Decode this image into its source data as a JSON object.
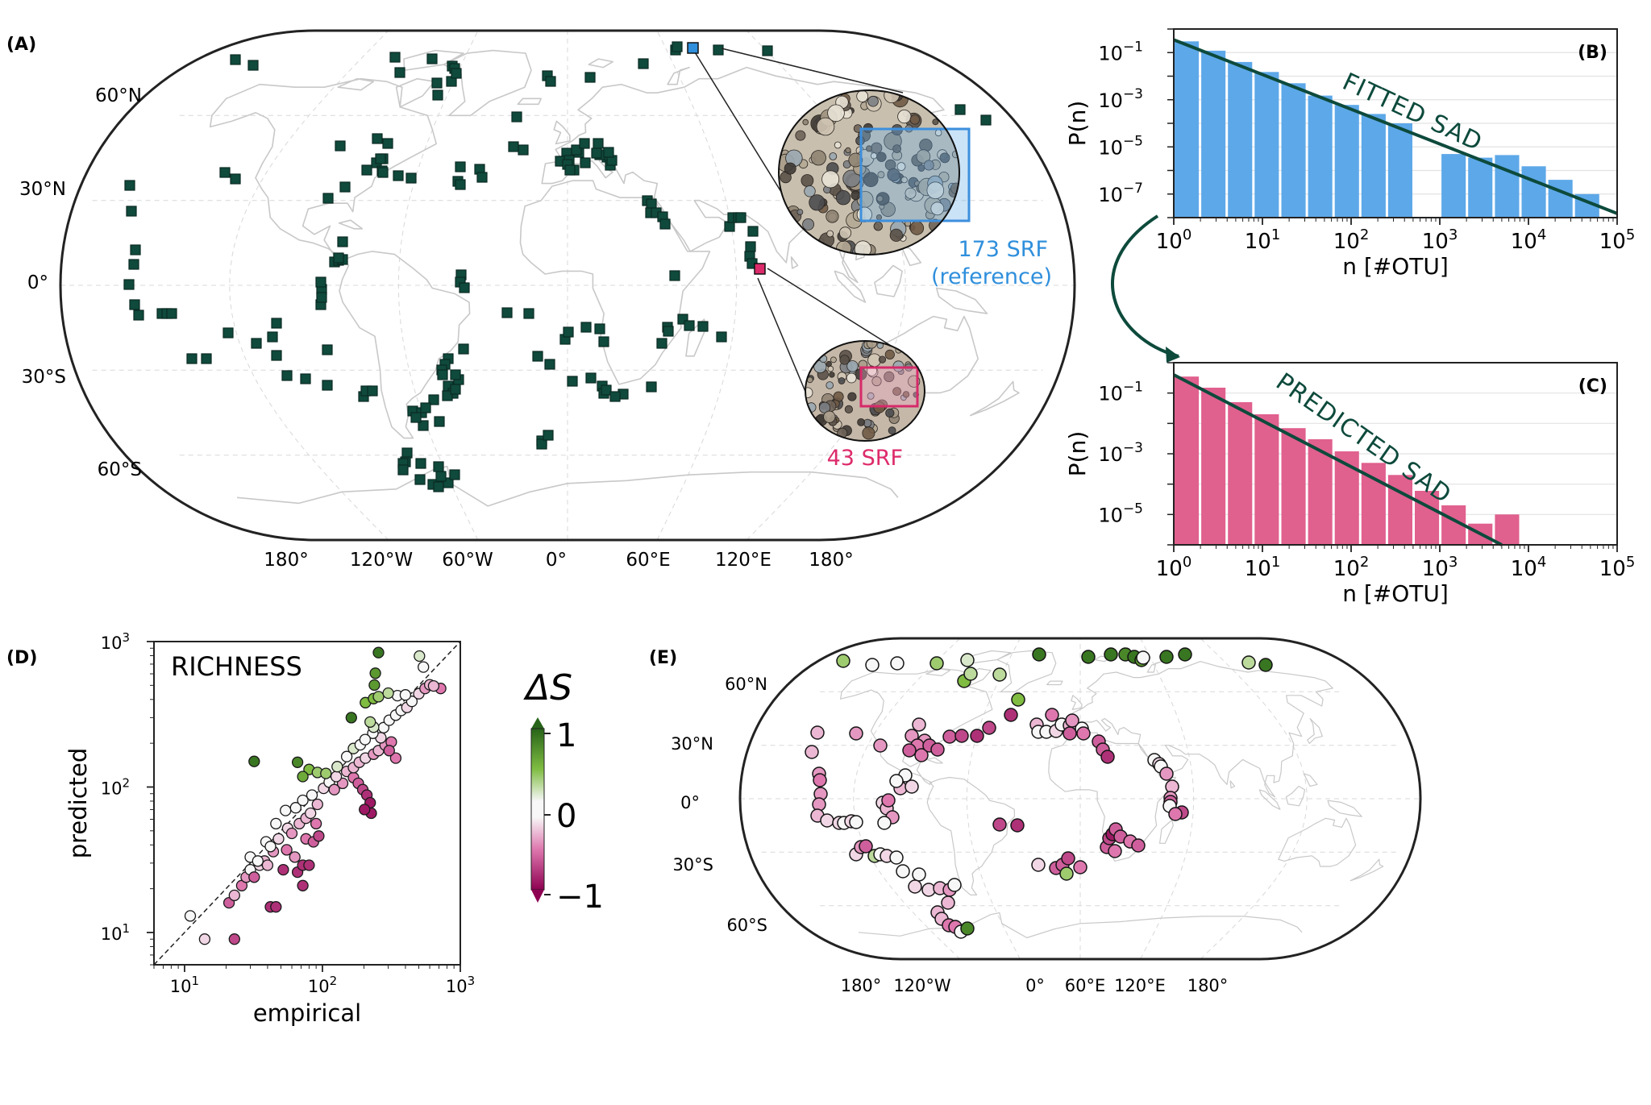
{
  "colors": {
    "marker": "#0f4a3c",
    "blue": "#5da8e8",
    "blue_text": "#2f8fdc",
    "pink": "#e0608e",
    "pink_text": "#dd2a6a",
    "fit_line": "#0d4a3c",
    "land": "#c8c8c8",
    "cb_pos": "#2f7a2a",
    "cb_neg": "#8e0152"
  },
  "panels": {
    "A": {
      "label": "(A)",
      "annotation_ref_1": "173 SRF",
      "annotation_ref_2": "(reference)",
      "annotation_sub": "43 SRF"
    },
    "B": {
      "label": "(B)",
      "fit_label": "FITTED SAD"
    },
    "C": {
      "label": "(C)",
      "fit_label": "PREDICTED SAD"
    },
    "D": {
      "label": "(D)",
      "title": "RICHNESS"
    },
    "E": {
      "label": "(E)"
    }
  },
  "map_labels": {
    "A_lat": [
      "60°N",
      "30°N",
      "0°",
      "30°S",
      "60°S"
    ],
    "A_lon": [
      "180°",
      "120°W",
      "60°W",
      "0°",
      "60°E",
      "120°E",
      "180°"
    ],
    "E_lat": [
      "60°N",
      "30°N",
      "0°",
      "30°S",
      "60°S"
    ],
    "E_lon": [
      "180°",
      "120°W",
      "0°",
      "60°E",
      "120°E",
      "180°"
    ]
  },
  "colorbar": {
    "title": "ΔS",
    "ticks": [
      "1",
      "0",
      "−1"
    ],
    "range": [
      -1,
      1
    ]
  },
  "chart_data": [
    {
      "type": "bar",
      "panel": "B",
      "xlabel": "n [#OTU]",
      "ylabel": "P(n)",
      "xscale": "log",
      "yscale": "log",
      "xlim": [
        1,
        100000
      ],
      "ylim": [
        1e-08,
        1
      ],
      "xtick_labels": [
        "10^0",
        "10^1",
        "10^2",
        "10^3",
        "10^4",
        "10^5"
      ],
      "ytick_labels": [
        "10^-1",
        "10^-3",
        "10^-5",
        "10^-7"
      ],
      "bin_edges": [
        1,
        2,
        4,
        8,
        16,
        32,
        64,
        128,
        256,
        512,
        1024,
        2048,
        4096,
        8192,
        16384,
        32768,
        65536
      ],
      "values": [
        0.3,
        0.12,
        0.04,
        0.015,
        0.005,
        0.0015,
        0.0006,
        0.00025,
        0.0001,
        null,
        5e-06,
        3.5e-06,
        4.5e-06,
        1.5e-06,
        4e-07,
        1e-07
      ],
      "fit_line": {
        "x": [
          1,
          100000
        ],
        "y": [
          0.35,
          1.5e-08
        ]
      }
    },
    {
      "type": "bar",
      "panel": "C",
      "xlabel": "n [#OTU]",
      "ylabel": "P(n)",
      "xscale": "log",
      "yscale": "log",
      "xlim": [
        1,
        100000
      ],
      "ylim": [
        1e-06,
        1
      ],
      "xtick_labels": [
        "10^0",
        "10^1",
        "10^2",
        "10^3",
        "10^4",
        "10^5"
      ],
      "ytick_labels": [
        "10^-1",
        "10^-3",
        "10^-5"
      ],
      "bin_edges": [
        1,
        2,
        4,
        8,
        16,
        32,
        64,
        128,
        256,
        512,
        1024,
        2048,
        4096,
        8192
      ],
      "values": [
        0.35,
        0.15,
        0.05,
        0.02,
        0.007,
        0.003,
        0.0012,
        0.0005,
        0.0002,
        6e-05,
        2e-05,
        5e-06,
        1e-05
      ],
      "fit_line": {
        "x": [
          1,
          5000
        ],
        "y": [
          0.4,
          1e-06
        ]
      }
    },
    {
      "type": "scatter",
      "panel": "D",
      "xlabel": "empirical",
      "ylabel": "predicted",
      "xscale": "log",
      "yscale": "log",
      "xlim": [
        6,
        1000
      ],
      "ylim": [
        6,
        1000
      ],
      "xtick_labels": [
        "10^1",
        "10^2",
        "10^3"
      ],
      "ytick_labels": [
        "10^1",
        "10^2",
        "10^3"
      ],
      "identity_line": true,
      "points": [
        [
          11,
          13,
          0
        ],
        [
          14,
          9,
          -0.2
        ],
        [
          23,
          9,
          -0.7
        ],
        [
          21,
          16,
          -0.6
        ],
        [
          23,
          18,
          -0.3
        ],
        [
          26,
          21,
          -0.5
        ],
        [
          28,
          24,
          -0.4
        ],
        [
          30,
          27,
          -0.1
        ],
        [
          32,
          24,
          -0.6
        ],
        [
          35,
          29,
          -0.2
        ],
        [
          38,
          31,
          -0.3
        ],
        [
          42,
          15,
          -0.8
        ],
        [
          46,
          15,
          -0.8
        ],
        [
          30,
          33,
          0
        ],
        [
          34,
          31,
          0
        ],
        [
          40,
          29,
          -0.3
        ],
        [
          44,
          36,
          -0.4
        ],
        [
          52,
          27,
          -0.8
        ],
        [
          55,
          37,
          -0.5
        ],
        [
          63,
          33,
          -0.4
        ],
        [
          66,
          26,
          -0.8
        ],
        [
          72,
          29,
          -0.8
        ],
        [
          80,
          29,
          -0.8
        ],
        [
          72,
          21,
          -0.8
        ],
        [
          39,
          42,
          0
        ],
        [
          42,
          39,
          -0.1
        ],
        [
          48,
          44,
          -0.2
        ],
        [
          56,
          52,
          -0.2
        ],
        [
          60,
          48,
          -0.4
        ],
        [
          68,
          56,
          -0.3
        ],
        [
          76,
          44,
          -0.5
        ],
        [
          86,
          42,
          -0.6
        ],
        [
          94,
          46,
          -0.7
        ],
        [
          90,
          56,
          -0.5
        ],
        [
          76,
          61,
          -0.3
        ],
        [
          82,
          66,
          -0.2
        ],
        [
          46,
          56,
          0
        ],
        [
          54,
          69,
          0.1
        ],
        [
          64,
          72,
          0
        ],
        [
          72,
          81,
          0
        ],
        [
          84,
          88,
          -0.1
        ],
        [
          92,
          76,
          -0.3
        ],
        [
          102,
          98,
          -0.2
        ],
        [
          112,
          108,
          -0.1
        ],
        [
          122,
          96,
          -0.4
        ],
        [
          140,
          106,
          -0.4
        ],
        [
          126,
          118,
          -0.2
        ],
        [
          150,
          128,
          -0.3
        ],
        [
          168,
          116,
          -0.5
        ],
        [
          182,
          106,
          -0.6
        ],
        [
          196,
          96,
          -0.7
        ],
        [
          210,
          88,
          -0.8
        ],
        [
          222,
          78,
          -0.9
        ],
        [
          226,
          66,
          -0.9
        ],
        [
          202,
          70,
          -0.9
        ],
        [
          168,
          136,
          -0.3
        ],
        [
          185,
          148,
          -0.3
        ],
        [
          205,
          158,
          -0.2
        ],
        [
          235,
          168,
          -0.4
        ],
        [
          255,
          178,
          -0.3
        ],
        [
          285,
          194,
          -0.4
        ],
        [
          316,
          204,
          -0.5
        ],
        [
          340,
          158,
          -0.5
        ],
        [
          305,
          178,
          -0.6
        ],
        [
          265,
          218,
          -0.2
        ],
        [
          232,
          234,
          0
        ],
        [
          278,
          256,
          -0.1
        ],
        [
          305,
          288,
          0
        ],
        [
          340,
          312,
          0.1
        ],
        [
          372,
          336,
          0
        ],
        [
          410,
          352,
          -0.2
        ],
        [
          445,
          388,
          -0.1
        ],
        [
          500,
          438,
          -0.2
        ],
        [
          555,
          476,
          -0.4
        ],
        [
          600,
          505,
          -0.3
        ],
        [
          720,
          476,
          -0.5
        ],
        [
          640,
          495,
          -0.3
        ],
        [
          350,
          425,
          0.1
        ],
        [
          32,
          150,
          0.9
        ],
        [
          66,
          148,
          0.8
        ],
        [
          80,
          132,
          0.5
        ],
        [
          72,
          118,
          0.6
        ],
        [
          92,
          126,
          0.4
        ],
        [
          106,
          124,
          0.4
        ],
        [
          128,
          138,
          0.2
        ],
        [
          150,
          162,
          0.1
        ],
        [
          168,
          184,
          0.2
        ],
        [
          188,
          195,
          0
        ],
        [
          204,
          212,
          0.1
        ],
        [
          235,
          258,
          0.2
        ],
        [
          222,
          280,
          0.3
        ],
        [
          205,
          380,
          0.5
        ],
        [
          235,
          405,
          0.5
        ],
        [
          255,
          418,
          0.4
        ],
        [
          300,
          442,
          0.3
        ],
        [
          238,
          502,
          0.7
        ],
        [
          242,
          606,
          0.7
        ],
        [
          255,
          840,
          0.9
        ],
        [
          162,
          300,
          0.9
        ],
        [
          540,
          668,
          0.1
        ],
        [
          505,
          795,
          0.2
        ],
        [
          400,
          430,
          -0.1
        ]
      ]
    }
  ]
}
